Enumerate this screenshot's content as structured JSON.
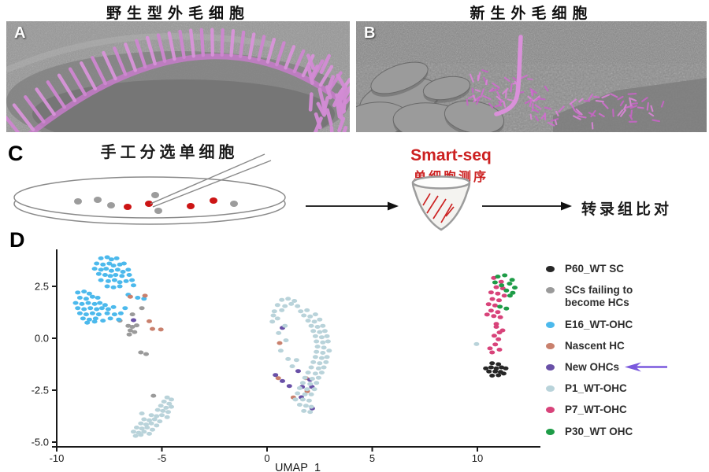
{
  "figure_bg": "#ffffff",
  "panels": {
    "a": {
      "label": "A",
      "title": "野生型外毛细胞"
    },
    "b": {
      "label": "B",
      "title": "新生外毛细胞"
    }
  },
  "panel_c": {
    "label": "C",
    "title": "手工分选单细胞",
    "smartseq_en": "Smart-seq",
    "smartseq_zh": "单细胞测序",
    "result_text": "转录组比对",
    "dish_cells": {
      "gray_color": "#9c9c9c",
      "red_color": "#cc1414",
      "gray": [
        [
          99,
          81
        ],
        [
          124,
          79
        ],
        [
          141,
          86
        ],
        [
          197,
          73
        ],
        [
          201,
          93
        ],
        [
          297,
          84
        ]
      ],
      "red": [
        [
          162,
          88
        ],
        [
          189,
          84
        ],
        [
          242,
          87
        ],
        [
          271,
          80
        ]
      ]
    }
  },
  "panel_d": {
    "label": "D"
  },
  "chart_data": {
    "type": "scatter",
    "xlabel": "UMAP_1",
    "xticks": {
      "values": [
        -10,
        -5,
        0,
        5,
        10
      ],
      "labels": [
        "-10",
        "-5",
        "0",
        "5",
        "10"
      ]
    },
    "yticks": {
      "values": [
        2.5,
        0,
        -2.5,
        -5
      ],
      "labels": [
        "2.5",
        "0.0",
        "-2.5",
        "-5.0"
      ]
    },
    "xlim": [
      -10.1,
      13.0
    ],
    "ylim": [
      -5.3,
      4.5
    ],
    "grid": false,
    "legend_position": "right",
    "annotation_arrow_color": "#7a58dd",
    "series": [
      {
        "name": "P60_WT SC",
        "color": "#262626",
        "points": [
          [
            10.7,
            -1.2
          ],
          [
            11.0,
            -1.25
          ],
          [
            10.4,
            -1.45
          ],
          [
            10.65,
            -1.4
          ],
          [
            10.9,
            -1.45
          ],
          [
            11.15,
            -1.4
          ],
          [
            11.35,
            -1.45
          ],
          [
            10.55,
            -1.6
          ],
          [
            10.85,
            -1.6
          ],
          [
            11.1,
            -1.62
          ],
          [
            10.7,
            -1.8
          ],
          [
            11.0,
            -1.78
          ],
          [
            11.25,
            -1.7
          ]
        ]
      },
      {
        "name": "SCs failing to become HCs",
        "color": "#9a9a9a",
        "points": [
          [
            -5.95,
            1.45
          ],
          [
            -6.4,
            1.15
          ],
          [
            -7.0,
            0.85
          ],
          [
            -6.6,
            0.6
          ],
          [
            -6.4,
            0.55
          ],
          [
            -6.2,
            0.62
          ],
          [
            -6.5,
            0.38
          ],
          [
            -6.3,
            0.3
          ],
          [
            -6.55,
            0.18
          ],
          [
            -6.0,
            -0.68
          ],
          [
            -5.75,
            -0.76
          ],
          [
            -5.4,
            -2.77
          ]
        ]
      },
      {
        "name": "E16_WT-OHC",
        "color": "#4cb9ec",
        "points": [
          [
            -7.9,
            3.85
          ],
          [
            -7.6,
            3.9
          ],
          [
            -7.4,
            3.8
          ],
          [
            -7.15,
            3.85
          ],
          [
            -8.1,
            3.6
          ],
          [
            -7.8,
            3.55
          ],
          [
            -7.5,
            3.6
          ],
          [
            -7.3,
            3.5
          ],
          [
            -7.0,
            3.55
          ],
          [
            -6.8,
            3.6
          ],
          [
            -8.2,
            3.35
          ],
          [
            -7.9,
            3.3
          ],
          [
            -7.65,
            3.35
          ],
          [
            -7.4,
            3.25
          ],
          [
            -7.1,
            3.3
          ],
          [
            -6.85,
            3.2
          ],
          [
            -6.6,
            3.3
          ],
          [
            -8.0,
            3.1
          ],
          [
            -7.7,
            3.05
          ],
          [
            -7.45,
            3.0
          ],
          [
            -7.2,
            3.05
          ],
          [
            -6.9,
            3.0
          ],
          [
            -6.55,
            3.05
          ],
          [
            -7.9,
            2.8
          ],
          [
            -7.55,
            2.75
          ],
          [
            -7.25,
            2.8
          ],
          [
            -7.0,
            2.7
          ],
          [
            -6.7,
            2.75
          ],
          [
            -6.42,
            2.8
          ],
          [
            -7.6,
            2.5
          ],
          [
            -7.3,
            2.45
          ],
          [
            -7.0,
            2.5
          ],
          [
            -6.35,
            2.55
          ],
          [
            -6.6,
            2.1
          ],
          [
            -9.0,
            2.2
          ],
          [
            -8.7,
            2.25
          ],
          [
            -8.45,
            2.15
          ],
          [
            -8.9,
            1.95
          ],
          [
            -8.6,
            1.9
          ],
          [
            -8.3,
            2.0
          ],
          [
            -8.05,
            1.95
          ],
          [
            -9.1,
            1.7
          ],
          [
            -8.8,
            1.65
          ],
          [
            -8.5,
            1.7
          ],
          [
            -8.2,
            1.65
          ],
          [
            -7.95,
            1.7
          ],
          [
            -7.7,
            1.6
          ],
          [
            -9.0,
            1.45
          ],
          [
            -8.7,
            1.4
          ],
          [
            -8.4,
            1.45
          ],
          [
            -8.1,
            1.4
          ],
          [
            -7.85,
            1.45
          ],
          [
            -7.55,
            1.4
          ],
          [
            -7.3,
            1.5
          ],
          [
            -8.9,
            1.2
          ],
          [
            -8.6,
            1.15
          ],
          [
            -8.3,
            1.2
          ],
          [
            -8.0,
            1.15
          ],
          [
            -7.6,
            1.2
          ],
          [
            -7.25,
            1.15
          ],
          [
            -6.95,
            1.2
          ],
          [
            -8.75,
            0.95
          ],
          [
            -8.45,
            0.9
          ],
          [
            -8.15,
            0.95
          ],
          [
            -7.45,
            0.95
          ],
          [
            -7.05,
            0.9
          ],
          [
            -8.55,
            0.75
          ],
          [
            -8.2,
            0.8
          ],
          [
            -7.8,
            0.85
          ],
          [
            -6.75,
            1.45
          ],
          [
            -6.15,
            1.95
          ],
          [
            -5.85,
            1.9
          ]
        ]
      },
      {
        "name": "Nascent HC",
        "color": "#c9806d",
        "points": [
          [
            -6.5,
            2.0
          ],
          [
            -5.8,
            2.05
          ],
          [
            -5.6,
            0.82
          ],
          [
            -5.45,
            0.45
          ],
          [
            -5.05,
            0.42
          ],
          [
            0.6,
            -0.23
          ],
          [
            0.53,
            -1.92
          ],
          [
            1.85,
            -1.92
          ],
          [
            1.91,
            -2.55
          ],
          [
            1.25,
            -2.85
          ]
        ]
      },
      {
        "name": "New OHCs",
        "color": "#6950a7",
        "annotation": "arrow",
        "points": [
          [
            -6.35,
            0.87
          ],
          [
            0.73,
            0.5
          ],
          [
            0.4,
            -1.77
          ],
          [
            0.73,
            -2.06
          ],
          [
            1.06,
            -2.3
          ],
          [
            1.48,
            -1.58
          ],
          [
            1.67,
            -2.34
          ],
          [
            2.04,
            -2.0
          ],
          [
            2.13,
            -2.34
          ],
          [
            1.63,
            -2.84
          ],
          [
            2.15,
            -3.38
          ]
        ]
      },
      {
        "name": "P1_WT-OHC",
        "color": "#b9d3da",
        "points": [
          [
            -4.75,
            -2.85
          ],
          [
            -4.55,
            -2.95
          ],
          [
            -4.9,
            -3.05
          ],
          [
            -4.65,
            -3.15
          ],
          [
            -5.05,
            -3.25
          ],
          [
            -4.8,
            -3.35
          ],
          [
            -4.55,
            -3.3
          ],
          [
            -5.2,
            -3.45
          ],
          [
            -4.95,
            -3.5
          ],
          [
            -4.7,
            -3.55
          ],
          [
            -5.5,
            -3.7
          ],
          [
            -5.25,
            -3.75
          ],
          [
            -5.0,
            -3.7
          ],
          [
            -4.75,
            -3.8
          ],
          [
            -5.85,
            -3.9
          ],
          [
            -5.6,
            -3.95
          ],
          [
            -5.35,
            -3.9
          ],
          [
            -5.1,
            -4.0
          ],
          [
            -6.0,
            -4.1
          ],
          [
            -5.75,
            -4.15
          ],
          [
            -5.5,
            -4.1
          ],
          [
            -5.25,
            -4.2
          ],
          [
            -6.2,
            -4.3
          ],
          [
            -5.95,
            -4.35
          ],
          [
            -5.7,
            -4.3
          ],
          [
            -5.45,
            -4.4
          ],
          [
            -6.35,
            -4.5
          ],
          [
            -6.1,
            -4.55
          ],
          [
            -5.85,
            -4.5
          ],
          [
            -5.6,
            -4.6
          ],
          [
            -6.25,
            -4.7
          ],
          [
            -6.0,
            -4.65
          ],
          [
            -5.95,
            -3.62
          ],
          [
            0.7,
            1.85
          ],
          [
            1.0,
            1.9
          ],
          [
            1.3,
            1.8
          ],
          [
            0.5,
            1.6
          ],
          [
            0.85,
            1.55
          ],
          [
            1.15,
            1.65
          ],
          [
            1.45,
            1.55
          ],
          [
            0.35,
            1.3
          ],
          [
            0.7,
            1.35
          ],
          [
            1.6,
            1.3
          ],
          [
            1.9,
            1.35
          ],
          [
            0.3,
            1.1
          ],
          [
            1.75,
            1.1
          ],
          [
            2.05,
            1.05
          ],
          [
            2.3,
            1.15
          ],
          [
            0.25,
            0.8
          ],
          [
            1.95,
            0.85
          ],
          [
            2.25,
            0.8
          ],
          [
            2.5,
            0.9
          ],
          [
            2.1,
            0.6
          ],
          [
            2.4,
            0.55
          ],
          [
            2.65,
            0.6
          ],
          [
            2.2,
            0.35
          ],
          [
            2.5,
            0.3
          ],
          [
            2.75,
            0.35
          ],
          [
            2.3,
            0.1
          ],
          [
            2.6,
            0.05
          ],
          [
            2.85,
            0.1
          ],
          [
            2.35,
            -0.15
          ],
          [
            2.65,
            -0.2
          ],
          [
            2.9,
            -0.15
          ],
          [
            2.4,
            -0.4
          ],
          [
            2.7,
            -0.45
          ],
          [
            2.35,
            -0.65
          ],
          [
            2.65,
            -0.7
          ],
          [
            2.95,
            -0.6
          ],
          [
            2.3,
            -0.9
          ],
          [
            2.6,
            -0.95
          ],
          [
            2.85,
            -0.9
          ],
          [
            2.2,
            -1.15
          ],
          [
            2.5,
            -1.2
          ],
          [
            2.8,
            -1.15
          ],
          [
            2.1,
            -1.4
          ],
          [
            2.45,
            -1.45
          ],
          [
            2.7,
            -1.4
          ],
          [
            1.95,
            -1.65
          ],
          [
            2.3,
            -1.7
          ],
          [
            2.6,
            -1.65
          ],
          [
            1.8,
            -1.9
          ],
          [
            2.15,
            -1.95
          ],
          [
            2.45,
            -1.9
          ],
          [
            1.7,
            -2.15
          ],
          [
            2.05,
            -2.2
          ],
          [
            2.35,
            -2.15
          ],
          [
            1.55,
            -2.4
          ],
          [
            1.9,
            -2.45
          ],
          [
            2.25,
            -2.45
          ],
          [
            1.45,
            -2.65
          ],
          [
            1.8,
            -2.7
          ],
          [
            2.1,
            -2.7
          ],
          [
            1.35,
            -2.95
          ],
          [
            1.7,
            -2.95
          ],
          [
            2.0,
            -3.0
          ],
          [
            1.55,
            -3.2
          ],
          [
            1.85,
            -3.25
          ],
          [
            2.1,
            -3.3
          ],
          [
            1.75,
            -3.5
          ],
          [
            2.05,
            -3.55
          ],
          [
            0.5,
            0.95
          ],
          [
            0.85,
            0.6
          ],
          [
            0.55,
            0.25
          ],
          [
            0.9,
            -0.1
          ],
          [
            0.65,
            -0.6
          ],
          [
            1.0,
            -1.0
          ],
          [
            1.2,
            -1.35
          ],
          [
            1.4,
            -1.05
          ],
          [
            9.96,
            -0.28
          ]
        ]
      },
      {
        "name": "P7_WT-OHC",
        "color": "#d8437a",
        "points": [
          [
            10.78,
            2.9
          ],
          [
            11.13,
            2.72
          ],
          [
            10.9,
            2.46
          ],
          [
            11.21,
            2.4
          ],
          [
            10.65,
            2.21
          ],
          [
            10.97,
            2.15
          ],
          [
            11.28,
            2.05
          ],
          [
            10.71,
            1.89
          ],
          [
            11.03,
            1.83
          ],
          [
            10.53,
            1.64
          ],
          [
            10.84,
            1.58
          ],
          [
            10.65,
            1.33
          ],
          [
            10.97,
            1.26
          ],
          [
            10.46,
            1.14
          ],
          [
            10.78,
            1.07
          ],
          [
            11.09,
            1.01
          ],
          [
            10.9,
            0.69
          ],
          [
            11.2,
            0.38
          ],
          [
            10.9,
            0.55
          ],
          [
            11.05,
            0.28
          ],
          [
            10.8,
            0.12
          ],
          [
            11.0,
            -0.05
          ],
          [
            10.85,
            -0.3
          ],
          [
            10.6,
            -0.49
          ],
          [
            10.7,
            -0.68
          ],
          [
            11.05,
            -0.55
          ]
        ]
      },
      {
        "name": "P30_WT OHC",
        "color": "#1e9c47",
        "points": [
          [
            10.97,
            2.97
          ],
          [
            11.3,
            3.03
          ],
          [
            11.65,
            2.81
          ],
          [
            10.84,
            2.69
          ],
          [
            11.53,
            2.63
          ],
          [
            11.78,
            2.44
          ],
          [
            11.38,
            2.3
          ],
          [
            11.68,
            2.19
          ],
          [
            11.07,
            1.52
          ],
          [
            11.38,
            1.43
          ],
          [
            11.55,
            2.05
          ],
          [
            11.15,
            2.55
          ]
        ]
      }
    ]
  }
}
